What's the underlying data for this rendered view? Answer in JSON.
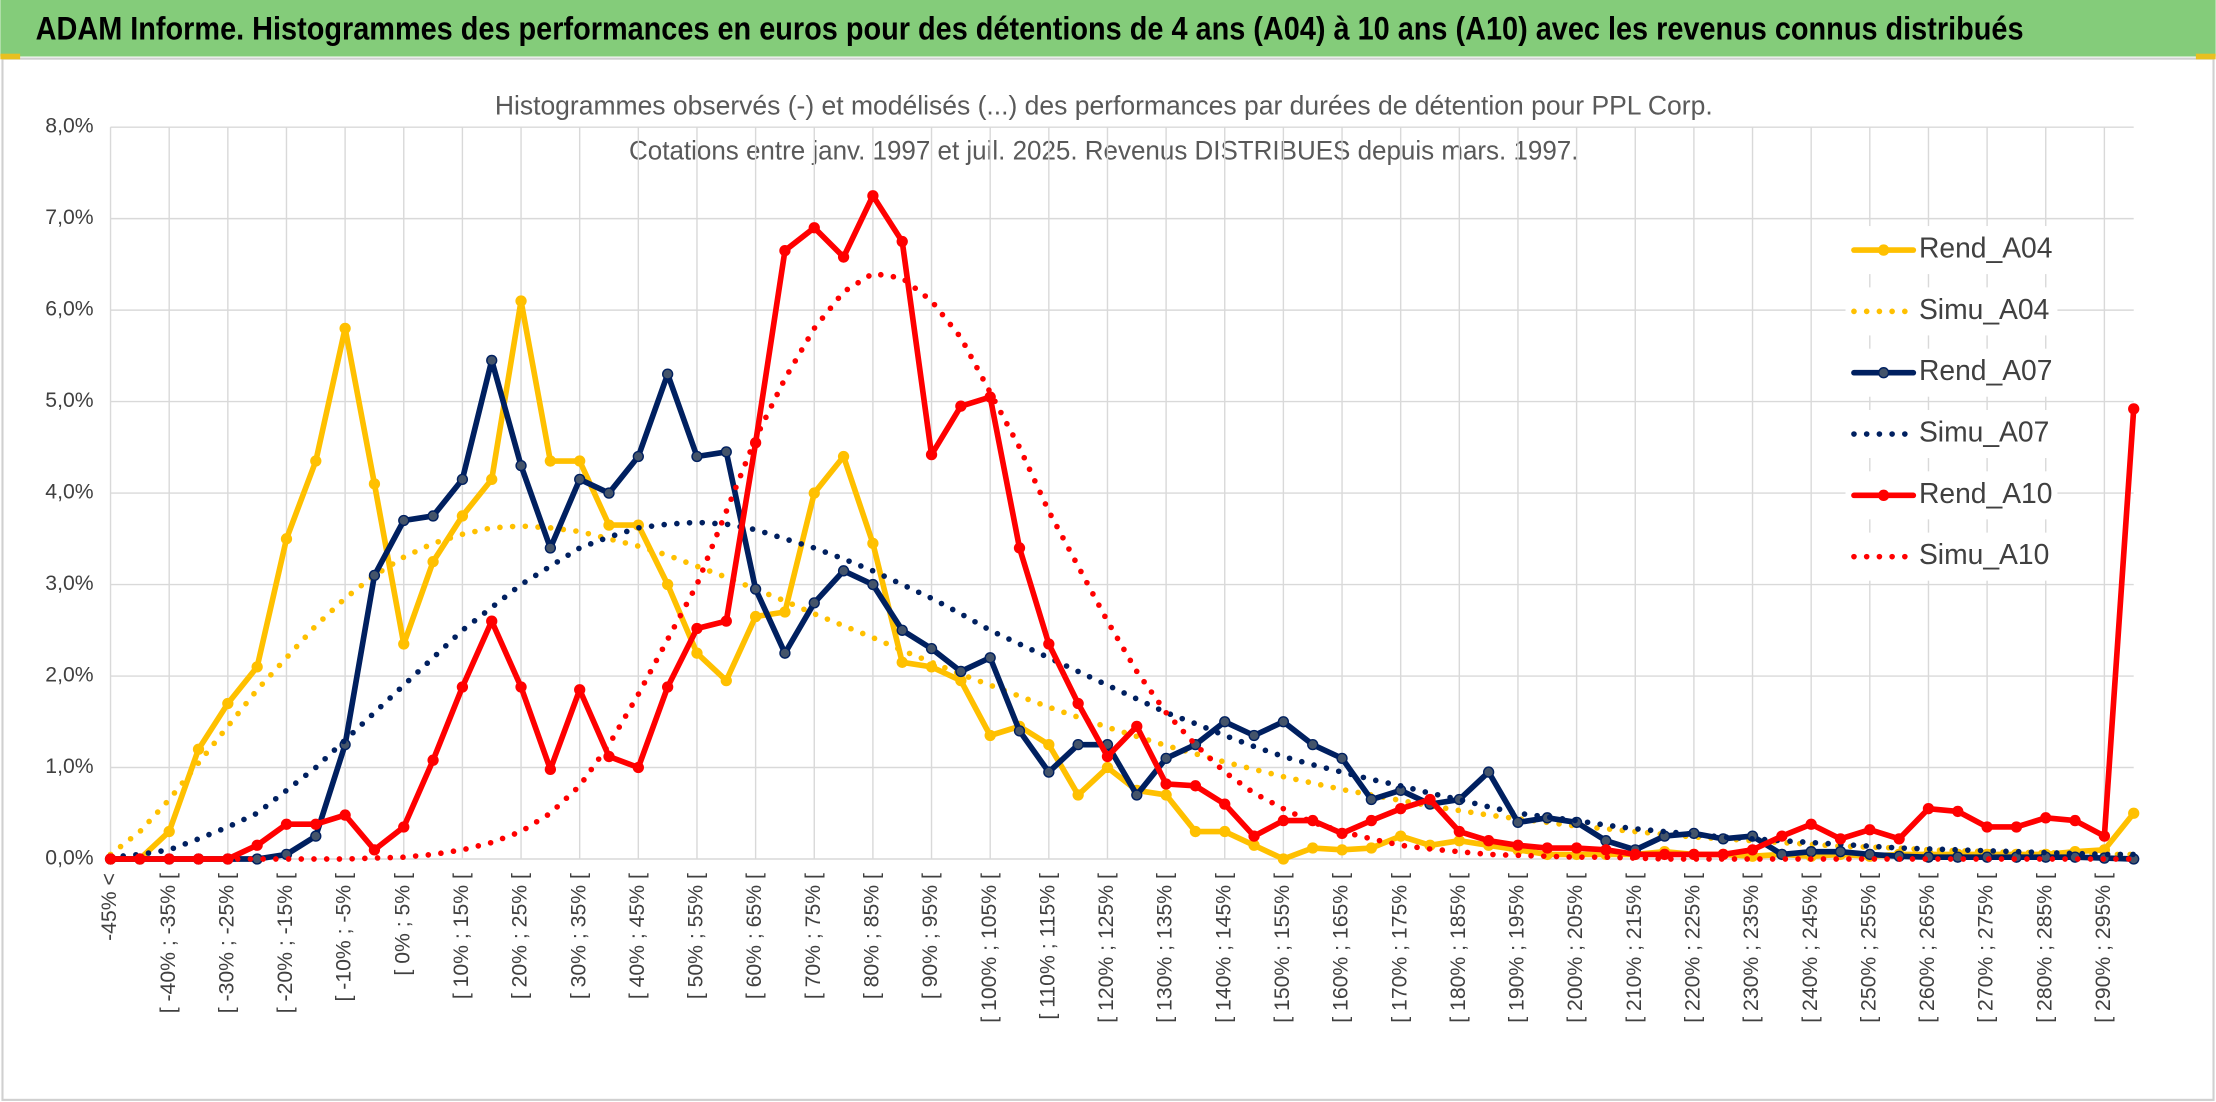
{
  "header": {
    "title": "ADAM Informe. Histogrammes des performances en euros pour des détentions de 4 ans (A04) à 10 ans (A10) avec les revenus connus distribués"
  },
  "chart_data": {
    "type": "line",
    "title": "Histogrammes observés (-) et modélisés (...) des performances par durées de détention pour PPL Corp.",
    "subtitle": "Cotations entre janv. 1997 et juil. 2025. Revenus DISTRIBUES depuis mars. 1997.",
    "categories": [
      "-45% <",
      null,
      "[ -40% ; -35% [",
      null,
      "[ -30% ; -25% [",
      null,
      "[ -20% ; -15% [",
      null,
      "[ -10% ; -5% [",
      null,
      "[ 0% ; 5% [",
      null,
      "[ 10% ; 15% [",
      null,
      "[ 20% ; 25% [",
      null,
      "[ 30% ; 35% [",
      null,
      "[ 40% ; 45% [",
      null,
      "[ 50% ; 55% [",
      null,
      "[ 60% ; 65% [",
      null,
      "[ 70% ; 75% [",
      null,
      "[ 80% ; 85% [",
      null,
      "[ 90% ; 95% [",
      null,
      "[ 100% ; 105% [",
      null,
      "[ 110% ; 115% [",
      null,
      "[ 120% ; 125% [",
      null,
      "[ 130% ; 135% [",
      null,
      "[ 140% ; 145% [",
      null,
      "[ 150% ; 155% [",
      null,
      "[ 160% ; 165% [",
      null,
      "[ 170% ; 175% [",
      null,
      "[ 180% ; 185% [",
      null,
      "[ 190% ; 195% [",
      null,
      "[ 200% ; 205% [",
      null,
      "[ 210% ; 215% [",
      null,
      "[ 220% ; 225% [",
      null,
      "[ 230% ; 235% [",
      null,
      "[ 240% ; 245% [",
      null,
      "[ 250% ; 255% [",
      null,
      "[ 260% ; 265% [",
      null,
      "[ 270% ; 275% [",
      null,
      "[ 280% ; 285% [",
      null,
      "[ 290% ; 295% [",
      null
    ],
    "series": [
      {
        "name": "Rend_A04",
        "color": "#FFC000",
        "style": "solid",
        "values": [
          0,
          0,
          0.3,
          1.2,
          1.7,
          2.1,
          3.5,
          4.35,
          5.8,
          4.1,
          2.35,
          3.25,
          3.75,
          4.15,
          6.1,
          4.35,
          4.35,
          3.65,
          3.65,
          3.0,
          2.25,
          1.95,
          2.65,
          2.7,
          4.0,
          4.4,
          3.45,
          2.15,
          2.1,
          1.95,
          1.35,
          1.45,
          1.25,
          0.7,
          1.0,
          0.75,
          0.7,
          0.3,
          0.3,
          0.15,
          0.0,
          0.12,
          0.1,
          0.12,
          0.25,
          0.15,
          0.2,
          0.15,
          0.1,
          0.05,
          0.05,
          0.05,
          0.05,
          0.08,
          0.05,
          0.05,
          0.03,
          0.05,
          0.03,
          0.05,
          0.03,
          0.05,
          0.05,
          0.05,
          0.05,
          0.05,
          0.05,
          0.08,
          0.1,
          0.5
        ]
      },
      {
        "name": "Simu_A04",
        "color": "#FFC000",
        "style": "dotted",
        "values": [
          0.05,
          0.3,
          0.65,
          1.05,
          1.45,
          1.85,
          2.2,
          2.55,
          2.85,
          3.1,
          3.3,
          3.45,
          3.55,
          3.62,
          3.64,
          3.62,
          3.58,
          3.5,
          3.42,
          3.32,
          3.2,
          3.08,
          2.95,
          2.82,
          2.68,
          2.55,
          2.42,
          2.28,
          2.15,
          2.02,
          1.9,
          1.78,
          1.66,
          1.55,
          1.44,
          1.34,
          1.24,
          1.15,
          1.06,
          0.98,
          0.9,
          0.83,
          0.76,
          0.7,
          0.64,
          0.58,
          0.53,
          0.48,
          0.44,
          0.4,
          0.36,
          0.33,
          0.3,
          0.27,
          0.24,
          0.22,
          0.2,
          0.18,
          0.16,
          0.14,
          0.13,
          0.12,
          0.1,
          0.09,
          0.08,
          0.07,
          0.07,
          0.06,
          0.05,
          0.05
        ]
      },
      {
        "name": "Rend_A07",
        "color": "#002060",
        "style": "solid",
        "values": [
          0,
          0,
          0,
          0,
          0,
          0,
          0.05,
          0.25,
          1.25,
          3.1,
          3.7,
          3.75,
          4.15,
          5.45,
          4.3,
          3.4,
          4.15,
          4.0,
          4.4,
          5.3,
          4.4,
          4.45,
          2.95,
          2.25,
          2.8,
          3.15,
          3.0,
          2.5,
          2.3,
          2.05,
          2.2,
          1.4,
          0.95,
          1.25,
          1.25,
          0.7,
          1.1,
          1.25,
          1.5,
          1.35,
          1.5,
          1.25,
          1.1,
          0.65,
          0.75,
          0.6,
          0.65,
          0.95,
          0.4,
          0.45,
          0.4,
          0.2,
          0.1,
          0.25,
          0.28,
          0.22,
          0.25,
          0.05,
          0.08,
          0.08,
          0.05,
          0.03,
          0.02,
          0.02,
          0.02,
          0.02,
          0.02,
          0.02,
          0.01,
          0.0
        ]
      },
      {
        "name": "Simu_A07",
        "color": "#002060",
        "style": "dotted",
        "values": [
          0.02,
          0.05,
          0.1,
          0.22,
          0.35,
          0.5,
          0.75,
          1.0,
          1.3,
          1.6,
          1.9,
          2.2,
          2.5,
          2.75,
          3.0,
          3.2,
          3.4,
          3.52,
          3.62,
          3.66,
          3.68,
          3.66,
          3.6,
          3.5,
          3.4,
          3.28,
          3.15,
          3.0,
          2.85,
          2.68,
          2.5,
          2.35,
          2.2,
          2.05,
          1.9,
          1.75,
          1.6,
          1.48,
          1.35,
          1.23,
          1.12,
          1.03,
          0.95,
          0.87,
          0.8,
          0.72,
          0.65,
          0.57,
          0.5,
          0.46,
          0.42,
          0.37,
          0.33,
          0.3,
          0.27,
          0.24,
          0.22,
          0.2,
          0.18,
          0.16,
          0.14,
          0.12,
          0.11,
          0.1,
          0.09,
          0.08,
          0.07,
          0.06,
          0.05,
          0.05
        ]
      },
      {
        "name": "Rend_A10",
        "color": "#FF0000",
        "style": "solid",
        "values": [
          0,
          0,
          0,
          0,
          0,
          0.15,
          0.38,
          0.38,
          0.48,
          0.1,
          0.35,
          1.08,
          1.88,
          2.6,
          1.88,
          0.98,
          1.85,
          1.12,
          1.0,
          1.88,
          2.52,
          2.6,
          4.55,
          6.65,
          6.9,
          6.58,
          7.25,
          6.75,
          4.42,
          4.95,
          5.05,
          3.4,
          2.35,
          1.7,
          1.12,
          1.45,
          0.82,
          0.8,
          0.6,
          0.25,
          0.42,
          0.42,
          0.28,
          0.42,
          0.55,
          0.65,
          0.3,
          0.2,
          0.15,
          0.12,
          0.12,
          0.1,
          0.05,
          0.05,
          0.05,
          0.05,
          0.1,
          0.25,
          0.38,
          0.22,
          0.32,
          0.22,
          0.55,
          0.52,
          0.35,
          0.35,
          0.45,
          0.42,
          0.25,
          4.92
        ]
      },
      {
        "name": "Simu_A10",
        "color": "#FF0000",
        "style": "dotted",
        "values": [
          0,
          0,
          0,
          0,
          0,
          0,
          0,
          0,
          0,
          0.01,
          0.02,
          0.05,
          0.1,
          0.18,
          0.3,
          0.5,
          0.8,
          1.25,
          1.8,
          2.4,
          3.0,
          3.8,
          4.6,
          5.25,
          5.8,
          6.2,
          6.4,
          6.35,
          6.1,
          5.7,
          5.1,
          4.5,
          3.8,
          3.2,
          2.6,
          2.05,
          1.6,
          1.25,
          0.95,
          0.72,
          0.55,
          0.4,
          0.3,
          0.22,
          0.15,
          0.11,
          0.08,
          0.05,
          0.04,
          0.03,
          0.02,
          0.02,
          0.01,
          0,
          0,
          0,
          0,
          0,
          0,
          0,
          0,
          0,
          0,
          0,
          0,
          0,
          0,
          0,
          0,
          0
        ]
      }
    ],
    "ylim": [
      0,
      8
    ],
    "yticks": [
      {
        "value": 0,
        "label": "0,0%"
      },
      {
        "value": 1,
        "label": "1,0%"
      },
      {
        "value": 2,
        "label": "2,0%"
      },
      {
        "value": 3,
        "label": "3,0%"
      },
      {
        "value": 4,
        "label": "4,0%"
      },
      {
        "value": 5,
        "label": "5,0%"
      },
      {
        "value": 6,
        "label": "6,0%"
      },
      {
        "value": 7,
        "label": "7,0%"
      },
      {
        "value": 8,
        "label": "8,0%"
      }
    ],
    "grid": true,
    "legend": "upper right"
  }
}
